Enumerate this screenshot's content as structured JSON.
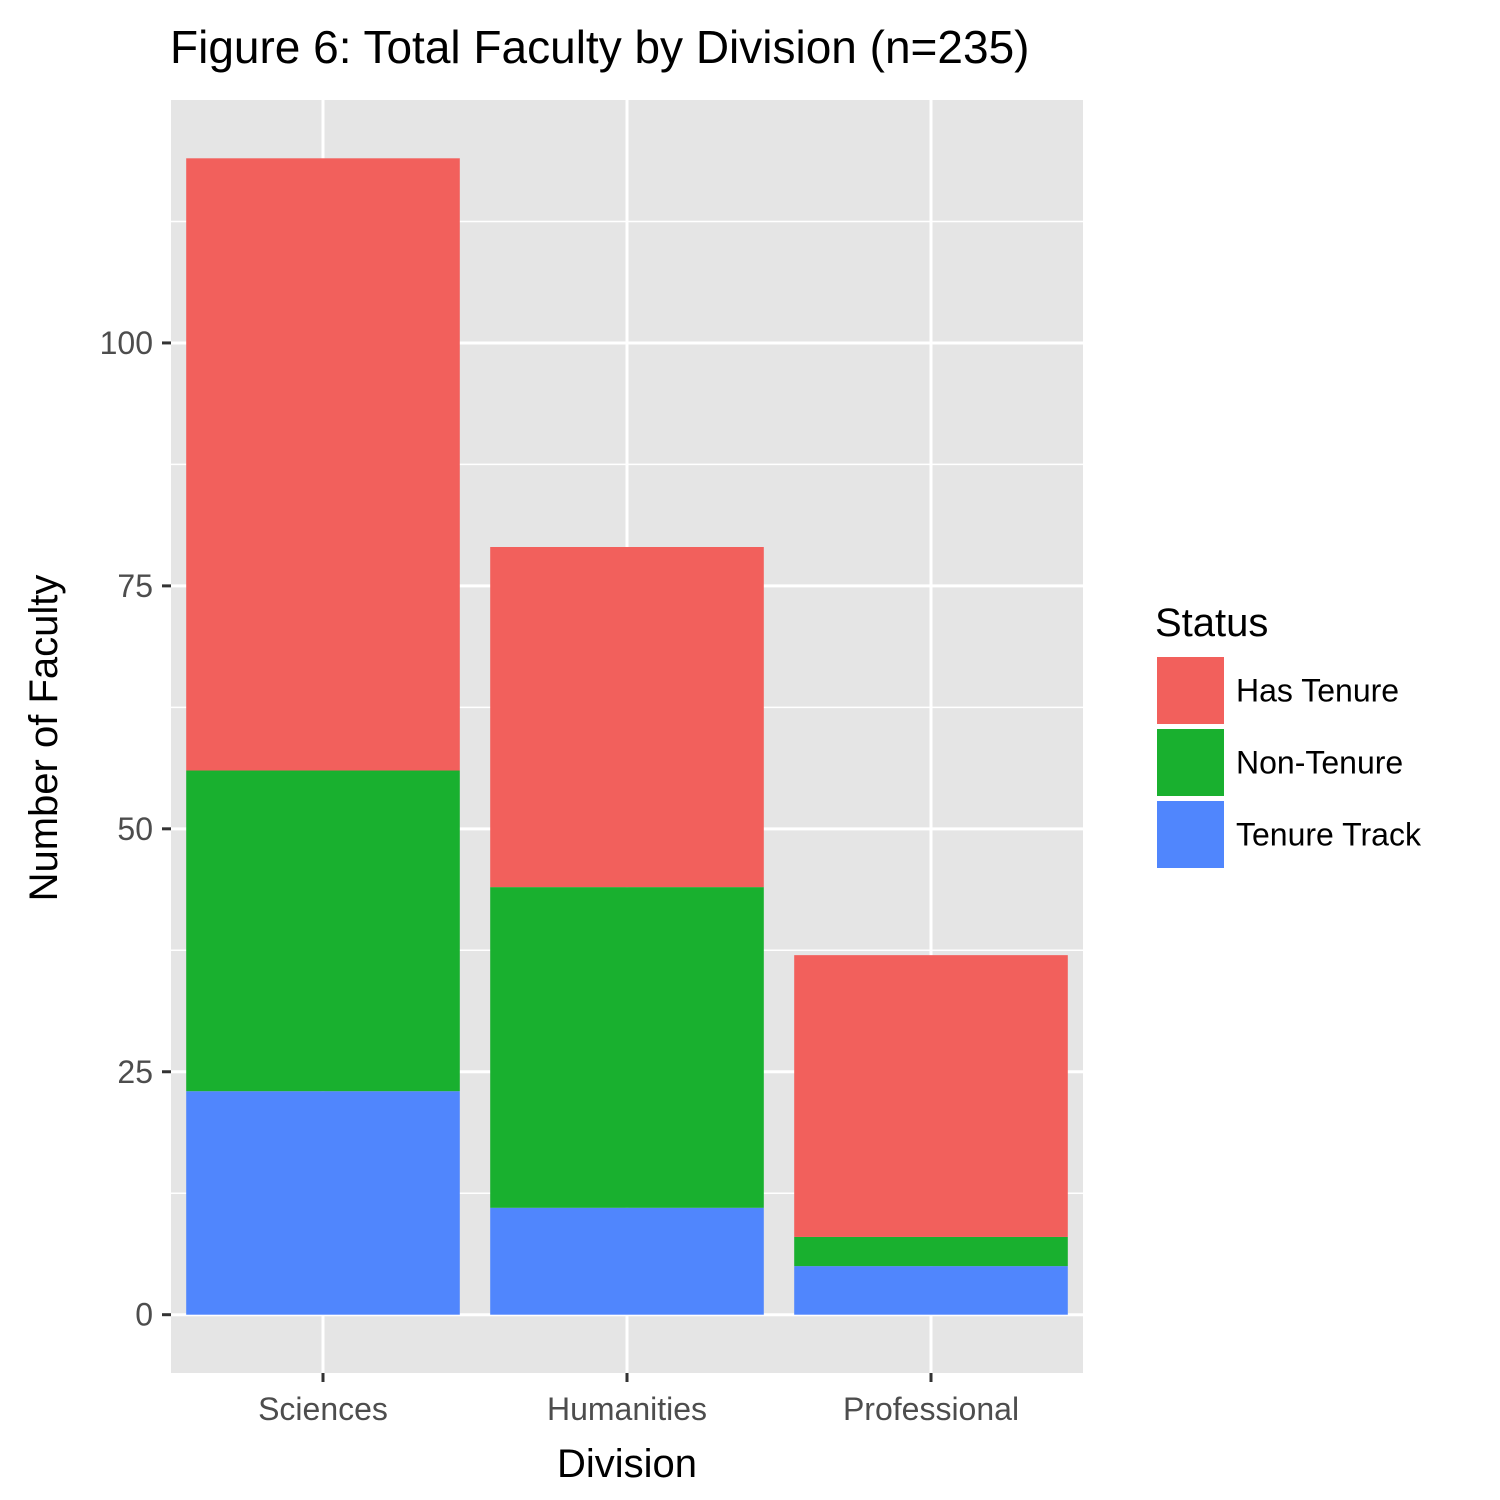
{
  "chart_data": {
    "type": "bar",
    "stacked": true,
    "title": "Figure 6: Total Faculty by Division (n=235)",
    "xlabel": "Division",
    "ylabel": "Number of Faculty",
    "categories": [
      "Sciences",
      "Humanities",
      "Professional"
    ],
    "series": [
      {
        "name": "Tenure Track",
        "values": [
          23,
          11,
          5
        ],
        "color": "#5086fd"
      },
      {
        "name": "Non-Tenure",
        "values": [
          33,
          33,
          3
        ],
        "color": "#19b02f"
      },
      {
        "name": "Has Tenure",
        "values": [
          63,
          35,
          29
        ],
        "color": "#f2605c"
      }
    ],
    "ylim": [
      -6,
      125
    ],
    "yticks": [
      0,
      25,
      50,
      75,
      100
    ],
    "grid": true,
    "legend": {
      "title": "Status",
      "position": "right",
      "order": [
        "Has Tenure",
        "Non-Tenure",
        "Tenure Track"
      ]
    },
    "panel_background": "#e5e5e5",
    "grid_color": "#ffffff"
  }
}
